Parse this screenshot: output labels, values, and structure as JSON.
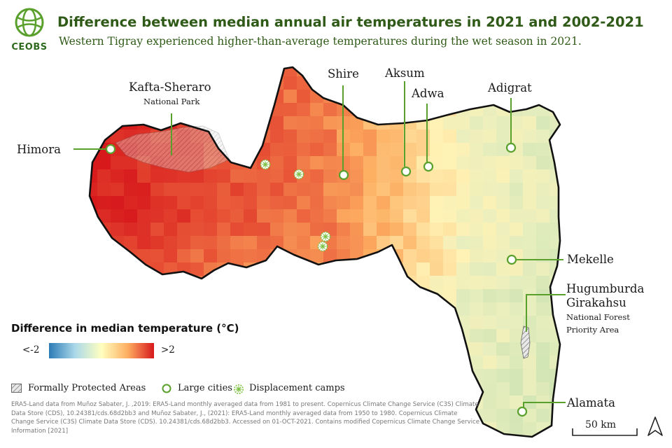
{
  "logo": {
    "text": "CEOBS",
    "icon": "globe-icon"
  },
  "title": "Difference between median annual air temperatures in 2021 and 2002-2021",
  "subtitle": "Western Tigray experienced higher-than-average temperatures during the wet season in 2021.",
  "places": {
    "himora": "Himora",
    "kafta": "Kafta-Sheraro",
    "kafta_sub": "National Park",
    "shire": "Shire",
    "aksum": "Aksum",
    "adwa": "Adwa",
    "adigrat": "Adigrat",
    "mekelle": "Mekelle",
    "hugumburda_1": "Hugumburda",
    "hugumburda_2": "Girakahsu",
    "hugumburda_sub_1": "National Forest",
    "hugumburda_sub_2": "Priority Area",
    "alamata": "Alamata"
  },
  "legend": {
    "title": "Difference in median temperature (°C)",
    "min_label": "<-2",
    "max_label": ">2",
    "protected": "Formally Protected Areas",
    "cities": "Large cities",
    "camps": "Displacement camps",
    "colors": {
      "low": "#2c7bb6",
      "mid": "#ffffbf",
      "high": "#d7191c"
    }
  },
  "credits": "ERA5-Land data from Muñoz Sabater, J. ,2019: ERA5-Land monthly averaged data from 1981 to present. Copernicus Climate Change Service (C3S) Climate Data Store (CDS), 10.24381/cds.68d2bb3 and Muñoz Sabater, J., (2021): ERA5-Land monthly averaged data from 1950 to 1980. Copernicus Climate Change Service (C3S) Climate Data Store (CDS). 10.24381/cds.68d2bb3. Accessed on 01-OCT-2021. Contains modified Copernicus Climate Change Service Information [2021]",
  "scale_bar": "50 km",
  "north_arrow": "north-arrow-icon"
}
